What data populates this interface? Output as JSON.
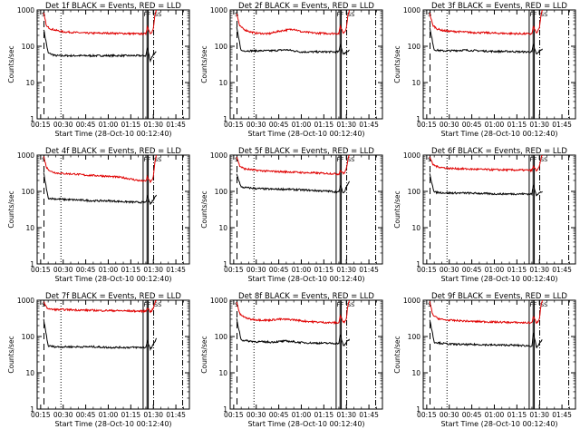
{
  "colors": {
    "events": "#000000",
    "lld": "#e00000",
    "axes": "#000000"
  },
  "chart_data": [
    {
      "type": "line",
      "title": "Det 1f BLACK = Events, RED = LLD",
      "xlabel": "Start Time (28-Oct-10 00:12:40)",
      "ylabel": "Counts/sec",
      "x_ticks": [
        "00:15",
        "00:30",
        "00:45",
        "01:00",
        "01:15",
        "01:30",
        "01:45"
      ],
      "y_ticks": [
        "1",
        "10",
        "100",
        "1000"
      ],
      "y_scale": "log",
      "xlim_minutes": [
        12.67,
        114
      ],
      "ylim": [
        1,
        1000
      ],
      "markers": [
        "S",
        "F",
        "F",
        "SS"
      ],
      "series": [
        {
          "name": "Events",
          "color": "#000000",
          "x_minutes": [
            17,
            20,
            25,
            30,
            40,
            50,
            60,
            70,
            80,
            85,
            86,
            88,
            89,
            90,
            92
          ],
          "values": [
            300,
            65,
            55,
            55,
            55,
            55,
            55,
            55,
            55,
            55,
            90,
            40,
            50,
            60,
            70
          ]
        },
        {
          "name": "LLD",
          "color": "#e00000",
          "x_minutes": [
            17,
            19,
            22,
            26,
            30,
            38,
            45,
            55,
            60,
            70,
            80,
            85,
            86,
            88,
            89,
            90,
            91,
            92
          ],
          "values": [
            800,
            350,
            300,
            270,
            250,
            240,
            230,
            230,
            230,
            225,
            220,
            220,
            350,
            230,
            250,
            300,
            700,
            1000
          ]
        }
      ]
    },
    {
      "type": "line",
      "title": "Det 2f BLACK = Events, RED = LLD",
      "xlabel": "Start Time (28-Oct-10 00:12:40)",
      "ylabel": "Counts/sec",
      "x_ticks": [
        "00:15",
        "00:30",
        "00:45",
        "01:00",
        "01:15",
        "01:30",
        "01:45"
      ],
      "y_ticks": [
        "1",
        "10",
        "100",
        "1000"
      ],
      "y_scale": "log",
      "xlim_minutes": [
        12.67,
        114
      ],
      "ylim": [
        1,
        1000
      ],
      "markers": [
        "S",
        "F",
        "F",
        "SS"
      ],
      "series": [
        {
          "name": "Events",
          "color": "#000000",
          "x_minutes": [
            17,
            20,
            25,
            30,
            40,
            50,
            60,
            70,
            80,
            85,
            86,
            88,
            89,
            90,
            92
          ],
          "values": [
            320,
            75,
            75,
            75,
            75,
            80,
            70,
            70,
            70,
            70,
            110,
            60,
            65,
            70,
            80
          ]
        },
        {
          "name": "LLD",
          "color": "#e00000",
          "x_minutes": [
            17,
            19,
            22,
            26,
            30,
            38,
            45,
            55,
            60,
            70,
            80,
            85,
            86,
            88,
            89,
            90,
            91,
            92
          ],
          "values": [
            800,
            360,
            290,
            250,
            230,
            220,
            260,
            300,
            250,
            230,
            225,
            225,
            360,
            230,
            260,
            320,
            700,
            1000
          ]
        }
      ]
    },
    {
      "type": "line",
      "title": "Det 3f BLACK = Events, RED = LLD",
      "xlabel": "Start Time (28-Oct-10 00:12:40)",
      "ylabel": "Counts/sec",
      "x_ticks": [
        "00:15",
        "00:30",
        "00:45",
        "01:00",
        "01:15",
        "01:30",
        "01:45"
      ],
      "y_ticks": [
        "1",
        "10",
        "100",
        "1000"
      ],
      "y_scale": "log",
      "xlim_minutes": [
        12.67,
        114
      ],
      "ylim": [
        1,
        1000
      ],
      "markers": [
        "S",
        "F",
        "F",
        "SS"
      ],
      "series": [
        {
          "name": "Events",
          "color": "#000000",
          "x_minutes": [
            17,
            20,
            25,
            30,
            40,
            50,
            60,
            70,
            80,
            85,
            86,
            88,
            89,
            90,
            92
          ],
          "values": [
            320,
            80,
            75,
            75,
            78,
            75,
            72,
            72,
            70,
            70,
            110,
            60,
            65,
            75,
            85
          ]
        },
        {
          "name": "LLD",
          "color": "#e00000",
          "x_minutes": [
            17,
            19,
            22,
            26,
            30,
            38,
            45,
            55,
            60,
            70,
            80,
            85,
            86,
            88,
            89,
            90,
            91,
            92
          ],
          "values": [
            800,
            380,
            300,
            270,
            260,
            250,
            240,
            235,
            230,
            225,
            220,
            220,
            350,
            230,
            260,
            320,
            700,
            1000
          ]
        }
      ]
    },
    {
      "type": "line",
      "title": "Det 4f BLACK = Events, RED = LLD",
      "xlabel": "Start Time (28-Oct-10 00:12:40)",
      "ylabel": "Counts/sec",
      "x_ticks": [
        "00:15",
        "00:30",
        "00:45",
        "01:00",
        "01:15",
        "01:30",
        "01:45"
      ],
      "y_ticks": [
        "1",
        "10",
        "100",
        "1000"
      ],
      "y_scale": "log",
      "xlim_minutes": [
        12.67,
        114
      ],
      "ylim": [
        1,
        1000
      ],
      "markers": [
        "S",
        "F",
        "F",
        "SS"
      ],
      "series": [
        {
          "name": "Events",
          "color": "#000000",
          "x_minutes": [
            17,
            20,
            25,
            30,
            40,
            50,
            60,
            70,
            80,
            85,
            86,
            88,
            89,
            90,
            92
          ],
          "values": [
            320,
            65,
            62,
            60,
            58,
            55,
            55,
            52,
            50,
            50,
            70,
            45,
            50,
            60,
            80
          ]
        },
        {
          "name": "LLD",
          "color": "#e00000",
          "x_minutes": [
            17,
            19,
            22,
            26,
            30,
            38,
            45,
            55,
            60,
            70,
            80,
            85,
            86,
            88,
            89,
            90,
            91,
            92
          ],
          "values": [
            900,
            450,
            350,
            320,
            310,
            300,
            280,
            270,
            260,
            240,
            200,
            190,
            250,
            180,
            200,
            260,
            600,
            1000
          ]
        }
      ]
    },
    {
      "type": "line",
      "title": "Det 5f BLACK = Events, RED = LLD",
      "xlabel": "Start Time (28-Oct-10 00:12:40)",
      "ylabel": "Counts/sec",
      "x_ticks": [
        "00:15",
        "00:30",
        "00:45",
        "01:00",
        "01:15",
        "01:30",
        "01:45"
      ],
      "y_ticks": [
        "1",
        "10",
        "100",
        "1000"
      ],
      "y_scale": "log",
      "xlim_minutes": [
        12.67,
        114
      ],
      "ylim": [
        1,
        1000
      ],
      "markers": [
        "S",
        "F",
        "F",
        "SS"
      ],
      "series": [
        {
          "name": "Events",
          "color": "#000000",
          "x_minutes": [
            17,
            20,
            25,
            30,
            40,
            50,
            60,
            70,
            80,
            85,
            86,
            88,
            89,
            90,
            92
          ],
          "values": [
            300,
            130,
            125,
            120,
            115,
            115,
            110,
            105,
            100,
            95,
            140,
            90,
            100,
            140,
            190
          ]
        },
        {
          "name": "LLD",
          "color": "#e00000",
          "x_minutes": [
            17,
            19,
            22,
            26,
            30,
            38,
            45,
            55,
            60,
            70,
            80,
            85,
            86,
            88,
            89,
            90,
            91,
            92
          ],
          "values": [
            900,
            500,
            420,
            400,
            380,
            360,
            350,
            340,
            330,
            320,
            310,
            300,
            380,
            310,
            340,
            420,
            750,
            1000
          ]
        }
      ]
    },
    {
      "type": "line",
      "title": "Det 6f BLACK = Events, RED = LLD",
      "xlabel": "Start Time (28-Oct-10 00:12:40)",
      "ylabel": "Counts/sec",
      "x_ticks": [
        "00:15",
        "00:30",
        "00:45",
        "01:00",
        "01:15",
        "01:30",
        "01:45"
      ],
      "y_ticks": [
        "1",
        "10",
        "100",
        "1000"
      ],
      "y_scale": "log",
      "xlim_minutes": [
        12.67,
        114
      ],
      "ylim": [
        1,
        1000
      ],
      "markers": [
        "S",
        "F",
        "F",
        "SS"
      ],
      "series": [
        {
          "name": "Events",
          "color": "#000000",
          "x_minutes": [
            17,
            20,
            25,
            30,
            40,
            50,
            60,
            70,
            80,
            85,
            86,
            88,
            89,
            90,
            92
          ],
          "values": [
            300,
            95,
            92,
            90,
            90,
            88,
            85,
            85,
            85,
            85,
            150,
            80,
            85,
            90,
            100
          ]
        },
        {
          "name": "LLD",
          "color": "#e00000",
          "x_minutes": [
            17,
            19,
            22,
            26,
            30,
            38,
            45,
            55,
            60,
            70,
            80,
            85,
            86,
            88,
            89,
            90,
            91,
            92
          ],
          "values": [
            900,
            550,
            480,
            450,
            430,
            420,
            410,
            400,
            395,
            390,
            385,
            380,
            480,
            380,
            400,
            480,
            800,
            1000
          ]
        }
      ]
    },
    {
      "type": "line",
      "title": "Det 7f BLACK = Events, RED = LLD",
      "xlabel": "Start Time (28-Oct-10 00:12:40)",
      "ylabel": "Counts/sec",
      "x_ticks": [
        "00:15",
        "00:30",
        "00:45",
        "01:00",
        "01:15",
        "01:30",
        "01:45"
      ],
      "y_ticks": [
        "1",
        "10",
        "100",
        "1000"
      ],
      "y_scale": "log",
      "xlim_minutes": [
        12.67,
        114
      ],
      "ylim": [
        1,
        1000
      ],
      "markers": [
        "S",
        "F",
        "F",
        "SS"
      ],
      "series": [
        {
          "name": "Events",
          "color": "#000000",
          "x_minutes": [
            17,
            20,
            25,
            30,
            40,
            50,
            60,
            70,
            80,
            85,
            86,
            88,
            89,
            90,
            92
          ],
          "values": [
            300,
            55,
            52,
            52,
            52,
            52,
            50,
            50,
            50,
            50,
            75,
            45,
            50,
            60,
            90
          ]
        },
        {
          "name": "LLD",
          "color": "#e00000",
          "x_minutes": [
            17,
            19,
            22,
            26,
            30,
            38,
            45,
            55,
            60,
            70,
            80,
            85,
            86,
            88,
            89,
            90,
            91,
            92
          ],
          "values": [
            900,
            620,
            560,
            550,
            550,
            540,
            530,
            520,
            520,
            510,
            500,
            500,
            620,
            480,
            520,
            600,
            850,
            1000
          ]
        }
      ]
    },
    {
      "type": "line",
      "title": "Det 8f BLACK = Events, RED = LLD",
      "xlabel": "Start Time (28-Oct-10 00:12:40)",
      "ylabel": "Counts/sec",
      "x_ticks": [
        "00:15",
        "00:30",
        "00:45",
        "01:00",
        "01:15",
        "01:30",
        "01:45"
      ],
      "y_ticks": [
        "1",
        "10",
        "100",
        "1000"
      ],
      "y_scale": "log",
      "xlim_minutes": [
        12.67,
        114
      ],
      "ylim": [
        1,
        1000
      ],
      "markers": [
        "S",
        "F",
        "F",
        "SS"
      ],
      "series": [
        {
          "name": "Events",
          "color": "#000000",
          "x_minutes": [
            17,
            20,
            25,
            30,
            40,
            50,
            60,
            70,
            80,
            85,
            86,
            88,
            89,
            90,
            92
          ],
          "values": [
            300,
            80,
            75,
            72,
            70,
            75,
            68,
            66,
            65,
            65,
            110,
            55,
            60,
            70,
            85
          ]
        },
        {
          "name": "LLD",
          "color": "#e00000",
          "x_minutes": [
            17,
            19,
            22,
            26,
            30,
            38,
            45,
            55,
            60,
            70,
            80,
            85,
            86,
            88,
            89,
            90,
            91,
            92
          ],
          "values": [
            900,
            420,
            340,
            300,
            290,
            280,
            300,
            290,
            270,
            250,
            240,
            240,
            380,
            240,
            260,
            330,
            720,
            1000
          ]
        }
      ]
    },
    {
      "type": "line",
      "title": "Det 9f BLACK = Events, RED = LLD",
      "xlabel": "Start Time (28-Oct-10 00:12:40)",
      "ylabel": "Counts/sec",
      "x_ticks": [
        "00:15",
        "00:30",
        "00:45",
        "01:00",
        "01:15",
        "01:30",
        "01:45"
      ],
      "y_ticks": [
        "1",
        "10",
        "100",
        "1000"
      ],
      "y_scale": "log",
      "xlim_minutes": [
        12.67,
        114
      ],
      "ylim": [
        1,
        1000
      ],
      "markers": [
        "S",
        "F",
        "F",
        "SS"
      ],
      "series": [
        {
          "name": "Events",
          "color": "#000000",
          "x_minutes": [
            17,
            20,
            25,
            30,
            40,
            50,
            60,
            70,
            80,
            85,
            86,
            88,
            89,
            90,
            92
          ],
          "values": [
            300,
            70,
            65,
            62,
            60,
            60,
            58,
            58,
            56,
            55,
            120,
            50,
            55,
            65,
            80
          ]
        },
        {
          "name": "LLD",
          "color": "#e00000",
          "x_minutes": [
            17,
            19,
            22,
            26,
            30,
            38,
            45,
            55,
            60,
            70,
            80,
            85,
            86,
            88,
            89,
            90,
            91,
            92
          ],
          "values": [
            900,
            400,
            320,
            290,
            280,
            270,
            260,
            255,
            250,
            245,
            240,
            240,
            350,
            240,
            260,
            320,
            700,
            1000
          ]
        }
      ]
    }
  ]
}
